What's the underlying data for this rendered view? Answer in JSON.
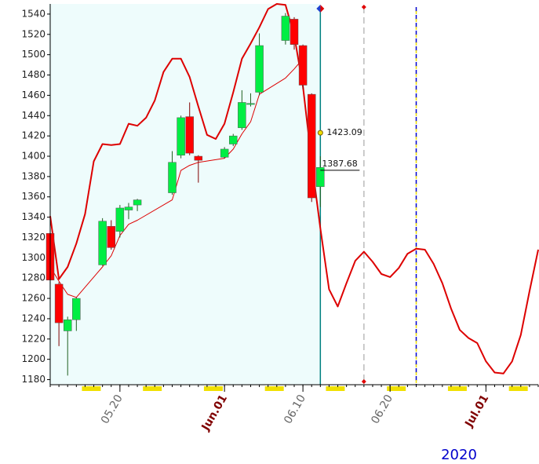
{
  "chart_data": {
    "type": "candlestick",
    "x": [
      "2020-05-12",
      "2020-05-13",
      "2020-05-14",
      "2020-05-15",
      "2020-05-18",
      "2020-05-19",
      "2020-05-20",
      "2020-05-21",
      "2020-05-22",
      "2020-05-26",
      "2020-05-27",
      "2020-05-28",
      "2020-05-29",
      "2020-06-01",
      "2020-06-02",
      "2020-06-03",
      "2020-06-04",
      "2020-06-05",
      "2020-06-08",
      "2020-06-09",
      "2020-06-10",
      "2020-06-11",
      "2020-06-12"
    ],
    "open": [
      1324,
      1274,
      1228,
      1239,
      1293,
      1331,
      1326,
      1347,
      1352,
      1364,
      1401,
      1439,
      1400,
      1399,
      1412,
      1428,
      1451,
      1463,
      1514,
      1535,
      1509,
      1461,
      1370
    ],
    "high": [
      1330,
      1276,
      1242,
      1261,
      1339,
      1337,
      1352,
      1354,
      1358,
      1405,
      1440,
      1453,
      1401,
      1409,
      1422,
      1465,
      1462,
      1521,
      1541,
      1537,
      1510,
      1462,
      1400
    ],
    "low": [
      1276,
      1213,
      1184,
      1228,
      1292,
      1308,
      1320,
      1338,
      1346,
      1362,
      1398,
      1401,
      1374,
      1398,
      1410,
      1426,
      1449,
      1460,
      1510,
      1505,
      1466,
      1355,
      1350
    ],
    "close": [
      1278,
      1236,
      1239,
      1260,
      1336,
      1310,
      1349,
      1350,
      1357,
      1394,
      1438,
      1403,
      1396,
      1407,
      1420,
      1453,
      1452,
      1509,
      1538,
      1510,
      1470,
      1359,
      1389
    ],
    "up_color": "#00ee44",
    "down_color": "#ff0000",
    "lines": [
      {
        "color": "#dd0000",
        "width": 2,
        "x": [
          "2020-05-12",
          "2020-05-13",
          "2020-05-14",
          "2020-05-15",
          "2020-05-16",
          "2020-05-17",
          "2020-05-18",
          "2020-05-19",
          "2020-05-20",
          "2020-05-21",
          "2020-05-22",
          "2020-05-23",
          "2020-05-24",
          "2020-05-25",
          "2020-05-26",
          "2020-05-27",
          "2020-05-28",
          "2020-05-29",
          "2020-05-30",
          "2020-05-31",
          "2020-06-01",
          "2020-06-02",
          "2020-06-03",
          "2020-06-04",
          "2020-06-05",
          "2020-06-06",
          "2020-06-07",
          "2020-06-08",
          "2020-06-09",
          "2020-06-10",
          "2020-06-11",
          "2020-06-12",
          "2020-06-13",
          "2020-06-14",
          "2020-06-15",
          "2020-06-16",
          "2020-06-17",
          "2020-06-18",
          "2020-06-19",
          "2020-06-20",
          "2020-06-21",
          "2020-06-22",
          "2020-06-23",
          "2020-06-24",
          "2020-06-25",
          "2020-06-26",
          "2020-06-27",
          "2020-06-28",
          "2020-06-29",
          "2020-06-30",
          "2020-07-01",
          "2020-07-02",
          "2020-07-03",
          "2020-07-04",
          "2020-07-05",
          "2020-07-06",
          "2020-07-07"
        ],
        "values": [
          1341,
          1279,
          1291,
          1314,
          1343,
          1395,
          1412,
          1411,
          1412,
          1432,
          1430,
          1438,
          1455,
          1483,
          1496,
          1496,
          1478,
          1449,
          1421,
          1417,
          1432,
          1463,
          1496,
          1511,
          1527,
          1545,
          1550,
          1549,
          1519,
          1469,
          1395,
          1329,
          1269,
          1252,
          1275,
          1297,
          1306,
          1296,
          1284,
          1281,
          1290,
          1304,
          1309,
          1308,
          1294,
          1275,
          1250,
          1229,
          1221,
          1216,
          1198,
          1187,
          1186,
          1198,
          1224,
          1267,
          1308
        ]
      },
      {
        "color": "#dd0000",
        "width": 1,
        "x": [
          "2020-05-12",
          "2020-05-13",
          "2020-05-14",
          "2020-05-15",
          "2020-05-18",
          "2020-05-19",
          "2020-05-20",
          "2020-05-21",
          "2020-05-22",
          "2020-05-26",
          "2020-05-27",
          "2020-05-28",
          "2020-05-29",
          "2020-06-01",
          "2020-06-02",
          "2020-06-03",
          "2020-06-04",
          "2020-06-05",
          "2020-06-08",
          "2020-06-09",
          "2020-06-10"
        ],
        "values": [
          1291,
          1277,
          1264,
          1261,
          1291,
          1302,
          1322,
          1333,
          1337,
          1357,
          1386,
          1391,
          1394,
          1398,
          1407,
          1422,
          1434,
          1461,
          1477,
          1486,
          1496
        ]
      }
    ],
    "annotations": [
      {
        "x": "2020-06-12",
        "y": 1423.09
      },
      {
        "x": "2020-06-12",
        "y": 1387.68
      }
    ],
    "vlines": [
      {
        "x": "2020-06-12",
        "color": "#008080",
        "dash": "none"
      },
      {
        "x": "2020-06-17",
        "color": "#bbbbbb",
        "dash": "8,5"
      },
      {
        "x": "2020-06-23",
        "color": "#0000cc",
        "dash": "6,4"
      }
    ],
    "shade": {
      "from": "2020-05-12",
      "to": "2020-06-12",
      "color": "#eefcfc"
    },
    "xlim": [
      "2020-05-12",
      "2020-07-07"
    ],
    "xticks": [
      {
        "value": "2020-05-20",
        "label": "05.20",
        "color": "#666666"
      },
      {
        "value": "2020-06-01",
        "label": "Jun.01",
        "color": "#800000"
      },
      {
        "value": "2020-06-10",
        "label": "06.10",
        "color": "#666666"
      },
      {
        "value": "2020-06-20",
        "label": "06.20",
        "color": "#666666"
      },
      {
        "value": "2020-07-01",
        "label": "Jul.01",
        "color": "#800000"
      }
    ],
    "ylim": [
      1175,
      1550
    ],
    "yticks": [
      1180,
      1200,
      1220,
      1240,
      1260,
      1280,
      1300,
      1320,
      1340,
      1360,
      1380,
      1400,
      1420,
      1440,
      1460,
      1480,
      1500,
      1520,
      1540
    ],
    "year": "2020"
  }
}
